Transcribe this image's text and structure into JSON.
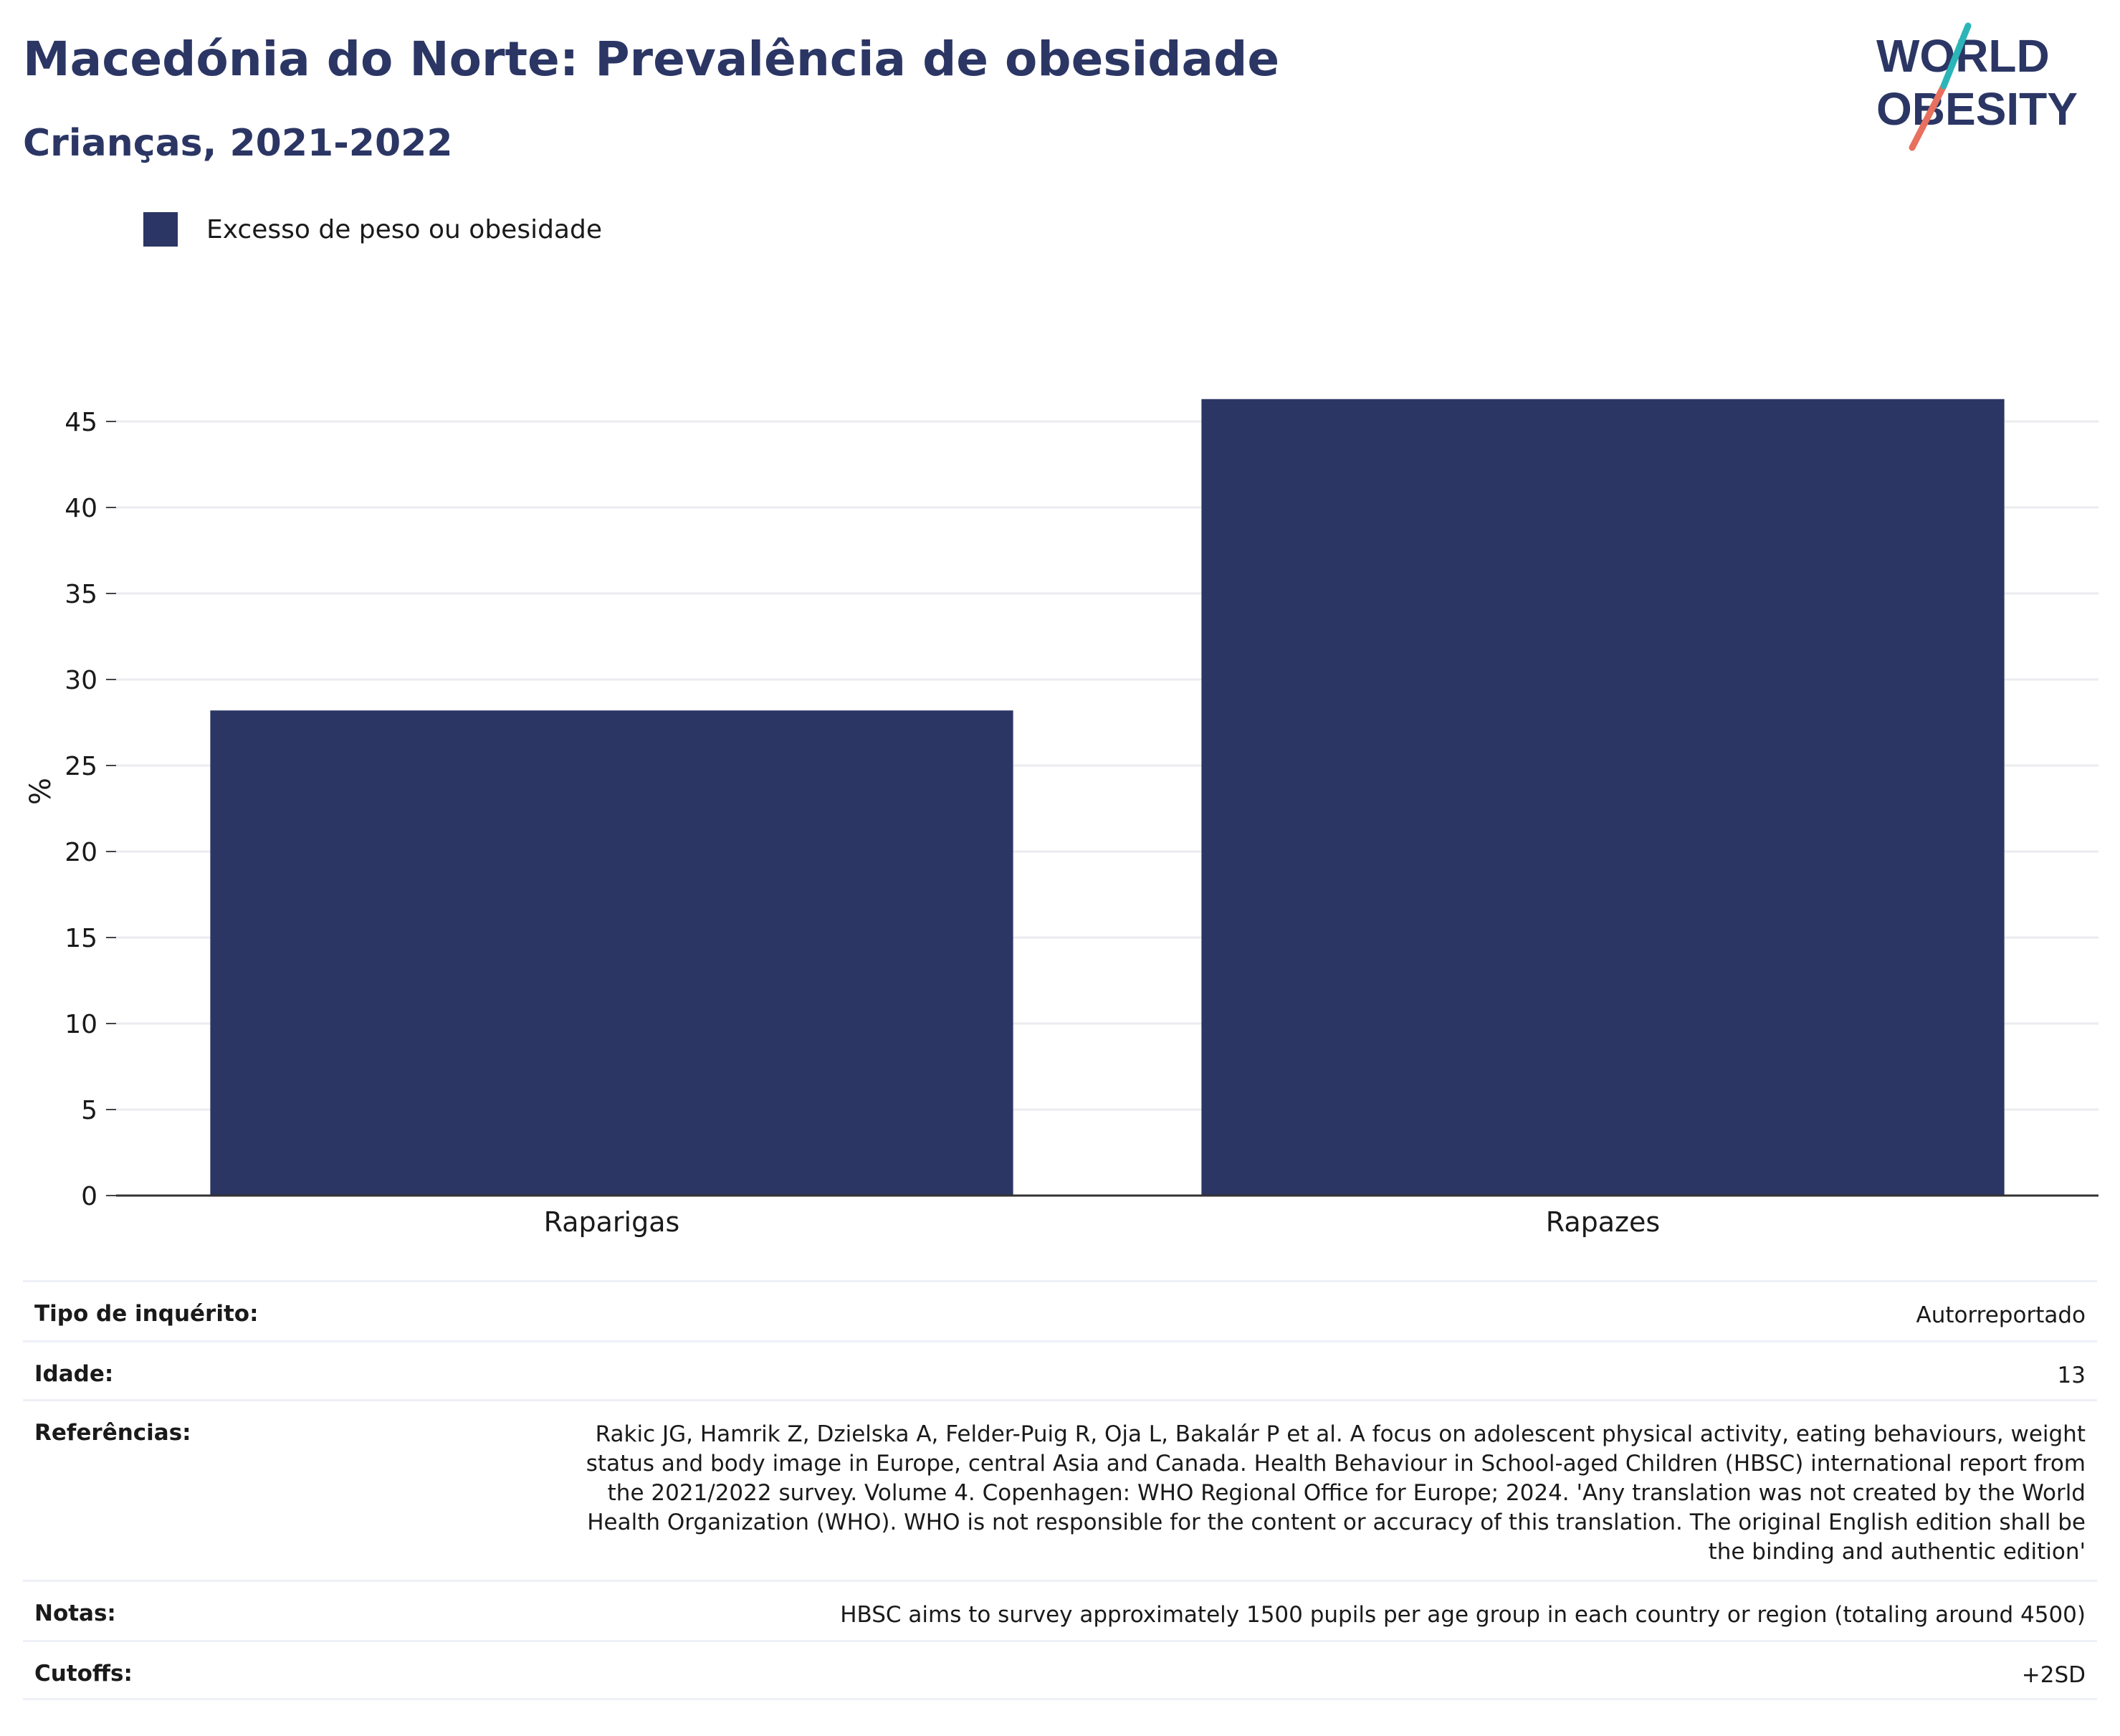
{
  "header": {
    "title": "Macedónia do Norte: Prevalência de obesidade",
    "subtitle": "Crianças, 2021-2022"
  },
  "logo": {
    "line1": "WORLD",
    "line2": "OBESITY"
  },
  "chart_data": {
    "type": "bar",
    "categories": [
      "Raparigas",
      "Rapazes"
    ],
    "series": [
      {
        "name": "Excesso de peso ou obesidade",
        "values": [
          28.2,
          46.3
        ],
        "color": "#2b3664"
      }
    ],
    "ylabel": "%",
    "xlabel": "",
    "ylim": [
      0,
      47
    ],
    "yticks": [
      0,
      5,
      10,
      15,
      20,
      25,
      30,
      35,
      40,
      45
    ],
    "grid": true,
    "legend": "top-left"
  },
  "meta": {
    "survey_type": {
      "label": "Tipo de inquérito:",
      "value": "Autorreportado"
    },
    "age": {
      "label": "Idade:",
      "value": "13"
    },
    "references": {
      "label": "Referências:",
      "value": "Rakic JG, Hamrik Z, Dzielska A, Felder-Puig R, Oja L, Bakalár P et al. A focus on adolescent physical activity, eating behaviours, weight status and body image in Europe, central Asia and Canada. Health Behaviour in School-aged Children (HBSC) international report from the 2021/2022 survey. Volume 4. Copenhagen: WHO Regional Office for Europe; 2024. 'Any translation was not created by the World Health Organization (WHO). WHO is not responsible for the content or accuracy of this translation. The original English edition shall be the binding and authentic edition'"
    },
    "notes": {
      "label": "Notas:",
      "value": "HBSC aims to survey approximately 1500 pupils per age group in each country or region (totaling around 4500)"
    },
    "cutoffs": {
      "label": "Cutoffs:",
      "value": "+2SD"
    }
  }
}
